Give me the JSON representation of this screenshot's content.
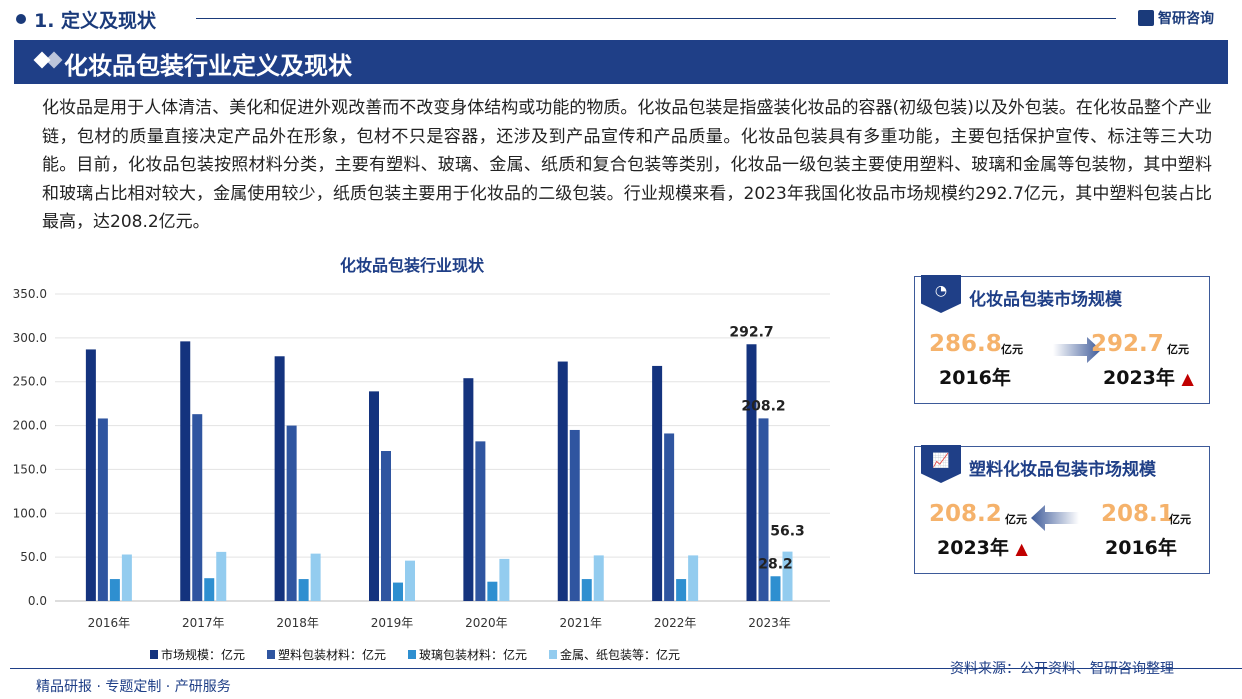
{
  "header": {
    "section": "1. 定义及现状",
    "logo": "智研咨询",
    "title": "化妆品包装行业定义及现状"
  },
  "paragraph": "化妆品是用于人体清洁、美化和促进外观改善而不改变身体结构或功能的物质。化妆品包装是指盛装化妆品的容器(初级包装)以及外包装。在化妆品整个产业链，包材的质量直接决定产品外在形象，包材不只是容器，还涉及到产品宣传和产品质量。化妆品包装具有多重功能，主要包括保护宣传、标注等三大功能。目前，化妆品包装按照材料分类，主要有塑料、玻璃、金属、纸质和复合包装等类别，化妆品一级包装主要使用塑料、玻璃和金属等包装物，其中塑料和玻璃占比相对较大，金属使用较少，纸质包装主要用于化妆品的二级包装。行业规模来看，2023年我国化妆品市场规模约292.7亿元，其中塑料包装占比最高，达208.2亿元。",
  "chart_data": {
    "type": "bar",
    "title": "化妆品包装行业现状",
    "categories": [
      "2016年",
      "2017年",
      "2018年",
      "2019年",
      "2020年",
      "2021年",
      "2022年",
      "2023年"
    ],
    "series": [
      {
        "name": "市场规模：亿元",
        "color": "#14337e",
        "values": [
          286.8,
          296,
          279,
          239,
          254,
          273,
          268,
          292.7
        ]
      },
      {
        "name": "塑料包装材料：亿元",
        "color": "#2f55a0",
        "values": [
          208.1,
          213,
          200,
          171,
          182,
          195,
          191,
          208.2
        ]
      },
      {
        "name": "玻璃包装材料：亿元",
        "color": "#2e8fd0",
        "values": [
          25,
          26,
          25,
          21,
          22,
          25,
          25,
          28.2
        ]
      },
      {
        "name": "金属、纸包装等：亿元",
        "color": "#93ccef",
        "values": [
          53,
          56,
          54,
          46,
          48,
          52,
          52,
          56.3
        ]
      }
    ],
    "yticks": [
      "0.0",
      "50.0",
      "100.0",
      "150.0",
      "200.0",
      "250.0",
      "300.0",
      "350.0"
    ],
    "ylim": [
      0,
      350
    ],
    "data_labels": [
      {
        "series": 0,
        "index": 7,
        "text": "292.7"
      },
      {
        "series": 1,
        "index": 7,
        "text": "208.2"
      },
      {
        "series": 2,
        "index": 7,
        "text": "28.2"
      },
      {
        "series": 3,
        "index": 7,
        "text": "56.3"
      }
    ],
    "legend": "bottom",
    "grid": true
  },
  "card1": {
    "title": "化妆品包装市场规模",
    "left_value": "286.8",
    "left_unit": "亿元",
    "left_year": "2016年",
    "right_value": "292.7",
    "right_unit": "亿元",
    "right_year": "2023年"
  },
  "card2": {
    "title": "塑料化妆品包装市场规模",
    "left_value": "208.2",
    "left_unit": "亿元",
    "left_year": "2023年",
    "right_value": "208.1",
    "right_unit": "亿元",
    "right_year": "2016年"
  },
  "footer": {
    "slogan": "精品研报 · 专题定制 · 产研服务",
    "source": "资料来源：公开资料、智研咨询整理"
  }
}
